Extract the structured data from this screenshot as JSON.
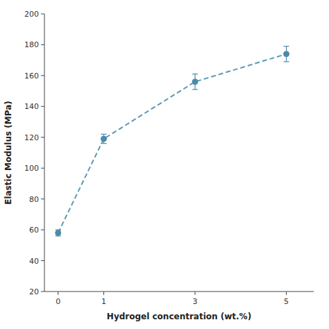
{
  "chart_data": {
    "type": "line",
    "xlabel": "Hydrogel concentration (wt.%)",
    "ylabel": "Elastic Modulus (MPa)",
    "x": [
      0,
      1,
      3,
      5
    ],
    "values": [
      58,
      119,
      156,
      174
    ],
    "errors": [
      2,
      3,
      5,
      5
    ],
    "color": "#5b9ab5",
    "colors": [
      "#4a8aaa",
      "#4a8aaa",
      "#4a8aaa",
      "#4a8aaa"
    ],
    "marker": "circle",
    "line_style": "dashed",
    "xlim": [
      -0.3,
      5.6
    ],
    "xticks": [
      0,
      1,
      3,
      5
    ],
    "ylim": [
      20,
      200
    ],
    "yticks": [
      20,
      40,
      60,
      80,
      100,
      120,
      140,
      160,
      180,
      200
    ],
    "grid": false
  }
}
